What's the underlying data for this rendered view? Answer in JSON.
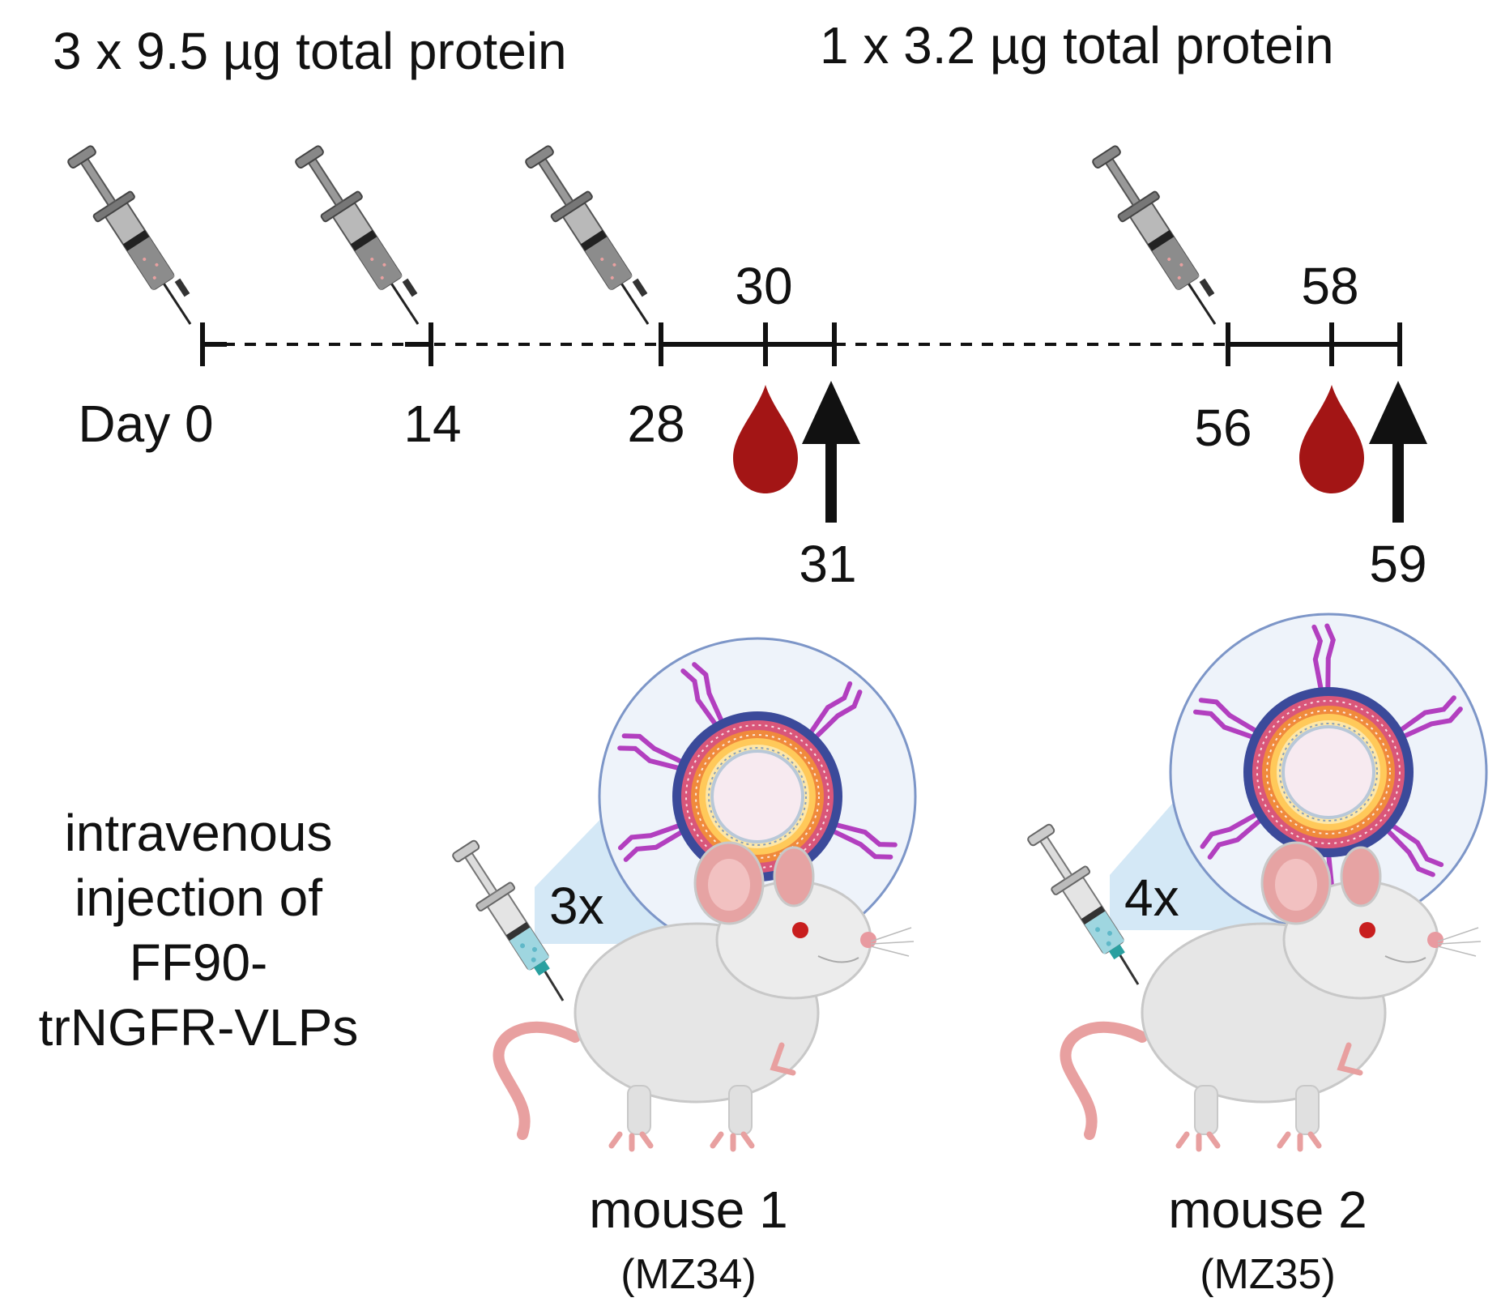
{
  "doses": {
    "first": "3 x 9.5 µg total protein",
    "second": "1 x 3.2 µg total protein"
  },
  "timeline": {
    "day0": "Day 0",
    "day14": "14",
    "day28": "28",
    "day30": "30",
    "day31": "31",
    "day56": "56",
    "day58": "58",
    "day59": "59"
  },
  "route": {
    "line1": "intravenous",
    "line2": "injection of",
    "line3": "FF90-",
    "line4": "trNGFR-VLPs"
  },
  "mice": [
    {
      "name": "mouse 1",
      "code": "(MZ34)",
      "multiplier": "3x"
    },
    {
      "name": "mouse 2",
      "code": "(MZ35)",
      "multiplier": "4x"
    }
  ],
  "colors": {
    "blood": "#a31515",
    "arrow": "#111111",
    "vlp_envelope": "#3b4a9a",
    "vlp_spike": "#b23fbf",
    "zoom_fill": "#cfe6f5"
  },
  "icons": {
    "syringe": "syringe-icon",
    "blood": "blood-drop-icon",
    "arrow": "up-arrow-icon",
    "mouse": "mouse-icon",
    "vlp": "virus-like-particle-icon"
  }
}
